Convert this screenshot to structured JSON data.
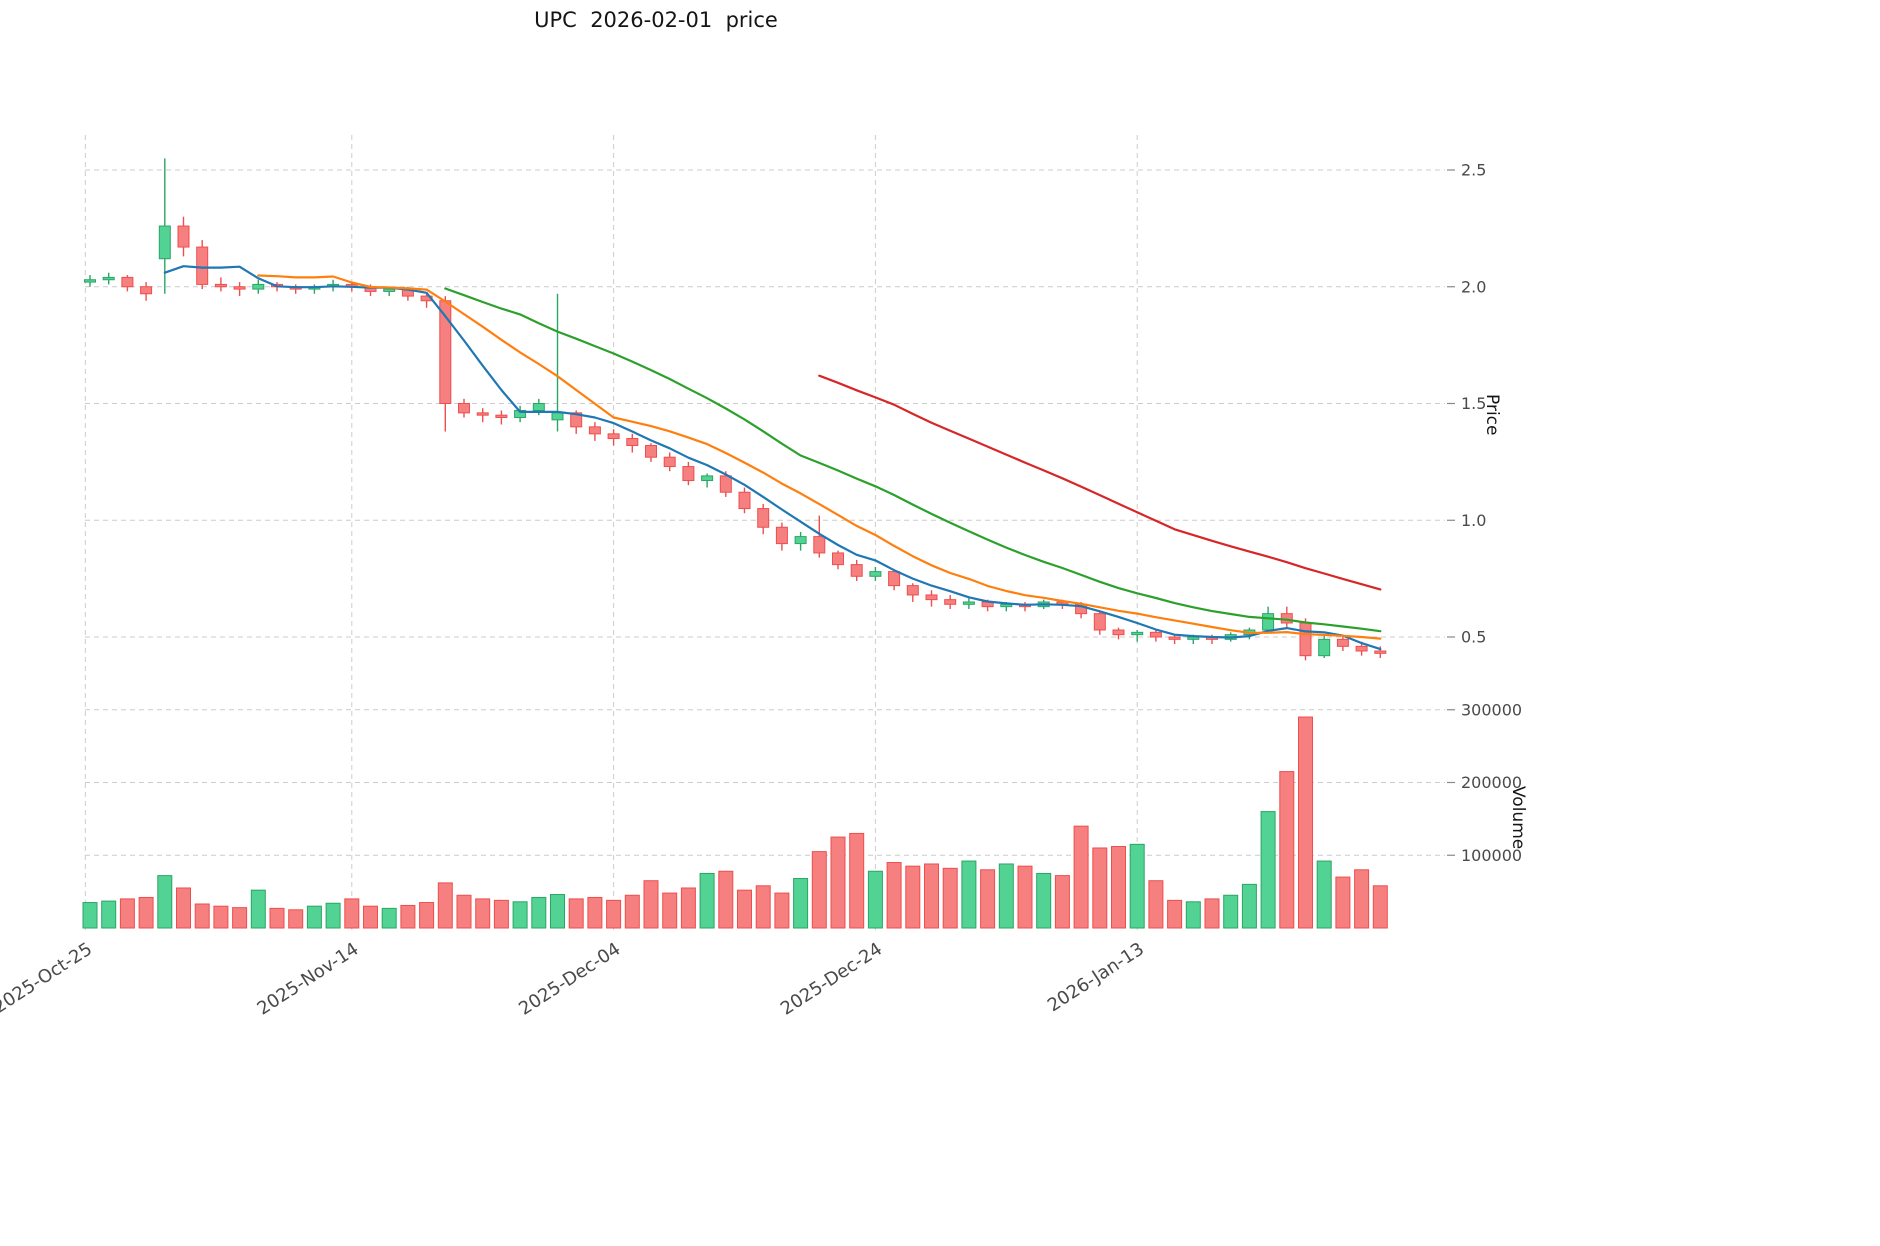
{
  "title": "UPC  2026-02-01  price",
  "chart_data": {
    "type": "candlestick",
    "title": "UPC  2026-02-01  price",
    "x_dates": [
      "2025-10-27",
      "2025-10-28",
      "2025-10-29",
      "2025-10-30",
      "2025-10-31",
      "2025-11-03",
      "2025-11-04",
      "2025-11-05",
      "2025-11-06",
      "2025-11-07",
      "2025-11-10",
      "2025-11-11",
      "2025-11-12",
      "2025-11-13",
      "2025-11-14",
      "2025-11-17",
      "2025-11-18",
      "2025-11-19",
      "2025-11-20",
      "2025-11-21",
      "2025-11-24",
      "2025-11-25",
      "2025-11-26",
      "2025-11-27",
      "2025-11-28",
      "2025-12-01",
      "2025-12-02",
      "2025-12-03",
      "2025-12-04",
      "2025-12-05",
      "2025-12-08",
      "2025-12-09",
      "2025-12-10",
      "2025-12-11",
      "2025-12-12",
      "2025-12-15",
      "2025-12-16",
      "2025-12-17",
      "2025-12-18",
      "2025-12-19",
      "2025-12-22",
      "2025-12-23",
      "2025-12-24",
      "2025-12-25",
      "2025-12-26",
      "2025-12-29",
      "2025-12-30",
      "2025-12-31",
      "2026-01-01",
      "2026-01-02",
      "2026-01-05",
      "2026-01-06",
      "2026-01-07",
      "2026-01-08",
      "2026-01-09",
      "2026-01-12",
      "2026-01-13",
      "2026-01-14",
      "2026-01-15",
      "2026-01-16",
      "2026-01-19",
      "2026-01-20",
      "2026-01-21",
      "2026-01-22",
      "2026-01-23",
      "2026-01-26",
      "2026-01-27",
      "2026-01-28",
      "2026-01-29",
      "2026-01-30"
    ],
    "ohlc": {
      "open": [
        2.02,
        2.03,
        2.04,
        2.0,
        2.12,
        2.26,
        2.17,
        2.01,
        2.0,
        1.99,
        2.01,
        2.0,
        1.99,
        2.0,
        2.01,
        2.0,
        1.98,
        1.99,
        1.96,
        1.94,
        1.5,
        1.46,
        1.45,
        1.44,
        1.47,
        1.43,
        1.46,
        1.4,
        1.37,
        1.35,
        1.32,
        1.27,
        1.23,
        1.17,
        1.19,
        1.12,
        1.05,
        0.97,
        0.9,
        0.93,
        0.86,
        0.81,
        0.76,
        0.78,
        0.72,
        0.68,
        0.66,
        0.64,
        0.65,
        0.63,
        0.64,
        0.63,
        0.65,
        0.64,
        0.6,
        0.53,
        0.51,
        0.52,
        0.5,
        0.49,
        0.5,
        0.49,
        0.51,
        0.53,
        0.6,
        0.56,
        0.42,
        0.49,
        0.46,
        0.44
      ],
      "high": [
        2.05,
        2.06,
        2.05,
        2.02,
        2.55,
        2.3,
        2.2,
        2.04,
        2.02,
        2.03,
        2.02,
        2.01,
        2.01,
        2.03,
        2.02,
        2.01,
        2.0,
        2.0,
        1.97,
        1.96,
        1.52,
        1.48,
        1.47,
        1.49,
        1.52,
        1.97,
        1.47,
        1.42,
        1.39,
        1.37,
        1.33,
        1.29,
        1.25,
        1.2,
        1.21,
        1.14,
        1.07,
        0.99,
        0.95,
        1.02,
        0.87,
        0.83,
        0.8,
        0.79,
        0.73,
        0.7,
        0.68,
        0.67,
        0.66,
        0.65,
        0.65,
        0.66,
        0.66,
        0.65,
        0.61,
        0.54,
        0.53,
        0.53,
        0.51,
        0.51,
        0.51,
        0.52,
        0.54,
        0.63,
        0.63,
        0.58,
        0.51,
        0.51,
        0.48,
        0.46
      ],
      "low": [
        2.0,
        2.01,
        1.98,
        1.94,
        1.97,
        2.13,
        1.99,
        1.98,
        1.96,
        1.97,
        1.98,
        1.97,
        1.97,
        1.98,
        1.98,
        1.96,
        1.96,
        1.94,
        1.91,
        1.38,
        1.44,
        1.42,
        1.41,
        1.42,
        1.45,
        1.38,
        1.37,
        1.34,
        1.32,
        1.29,
        1.25,
        1.21,
        1.15,
        1.14,
        1.1,
        1.03,
        0.94,
        0.87,
        0.87,
        0.84,
        0.79,
        0.74,
        0.74,
        0.7,
        0.65,
        0.63,
        0.62,
        0.62,
        0.61,
        0.61,
        0.61,
        0.62,
        0.62,
        0.58,
        0.51,
        0.49,
        0.48,
        0.48,
        0.47,
        0.47,
        0.47,
        0.48,
        0.49,
        0.52,
        0.54,
        0.4,
        0.41,
        0.44,
        0.42,
        0.41
      ],
      "close": [
        2.03,
        2.04,
        2.0,
        1.97,
        2.26,
        2.17,
        2.01,
        2.0,
        1.99,
        2.01,
        2.0,
        1.99,
        2.0,
        2.01,
        2.0,
        1.98,
        1.99,
        1.96,
        1.94,
        1.5,
        1.46,
        1.45,
        1.44,
        1.47,
        1.5,
        1.46,
        1.4,
        1.37,
        1.35,
        1.32,
        1.27,
        1.23,
        1.17,
        1.19,
        1.12,
        1.05,
        0.97,
        0.9,
        0.93,
        0.86,
        0.81,
        0.76,
        0.78,
        0.72,
        0.68,
        0.66,
        0.64,
        0.65,
        0.63,
        0.64,
        0.63,
        0.65,
        0.64,
        0.6,
        0.53,
        0.51,
        0.52,
        0.5,
        0.49,
        0.5,
        0.49,
        0.51,
        0.53,
        0.6,
        0.56,
        0.42,
        0.49,
        0.46,
        0.44,
        0.43
      ]
    },
    "volume": [
      35000,
      37000,
      40000,
      42000,
      72000,
      55000,
      33000,
      30000,
      28000,
      52000,
      27000,
      25000,
      30000,
      34000,
      40000,
      30000,
      27000,
      31000,
      35000,
      62000,
      45000,
      40000,
      38000,
      36000,
      42000,
      46000,
      40000,
      42000,
      38000,
      45000,
      65000,
      48000,
      55000,
      75000,
      78000,
      52000,
      58000,
      48000,
      68000,
      105000,
      125000,
      130000,
      78000,
      90000,
      85000,
      88000,
      82000,
      92000,
      80000,
      88000,
      85000,
      75000,
      72000,
      140000,
      110000,
      112000,
      115000,
      65000,
      38000,
      36000,
      40000,
      45000,
      60000,
      160000,
      215000,
      290000,
      92000,
      70000,
      80000,
      58000
    ],
    "moving_averages": [
      {
        "name": "MA5",
        "window": 5,
        "color": "#1f77b4"
      },
      {
        "name": "MA10",
        "window": 10,
        "color": "#ff7f0e"
      },
      {
        "name": "MA20",
        "window": 20,
        "color": "#2ca02c"
      },
      {
        "name": "MA40",
        "window": 40,
        "color": "#d62728"
      }
    ],
    "price_axis": {
      "label": "Price",
      "ticks": [
        2.5,
        2.0,
        1.5,
        1.0,
        0.5
      ],
      "range": [
        0.35,
        2.6
      ]
    },
    "volume_axis": {
      "label": "Volume",
      "ticks": [
        300000,
        200000,
        100000
      ],
      "range": [
        0,
        320000
      ]
    },
    "x_ticks": [
      {
        "label": "2025-Oct-25",
        "index": -0.25
      },
      {
        "label": "2025-Nov-14",
        "index": 14
      },
      {
        "label": "2025-Dec-04",
        "index": 28
      },
      {
        "label": "2025-Dec-24",
        "index": 42
      },
      {
        "label": "2026-Jan-13",
        "index": 56
      }
    ],
    "layout": {
      "grid": true,
      "legend": false
    },
    "colors": {
      "up_fill": "#53d393",
      "up_edge": "#2aa566",
      "down_fill": "#f6807f",
      "down_edge": "#ee4e4e",
      "grid": "#cccccc",
      "tick_mark": "#888888",
      "tick_text": "#4a4a4a",
      "title_text": "#151515"
    }
  }
}
